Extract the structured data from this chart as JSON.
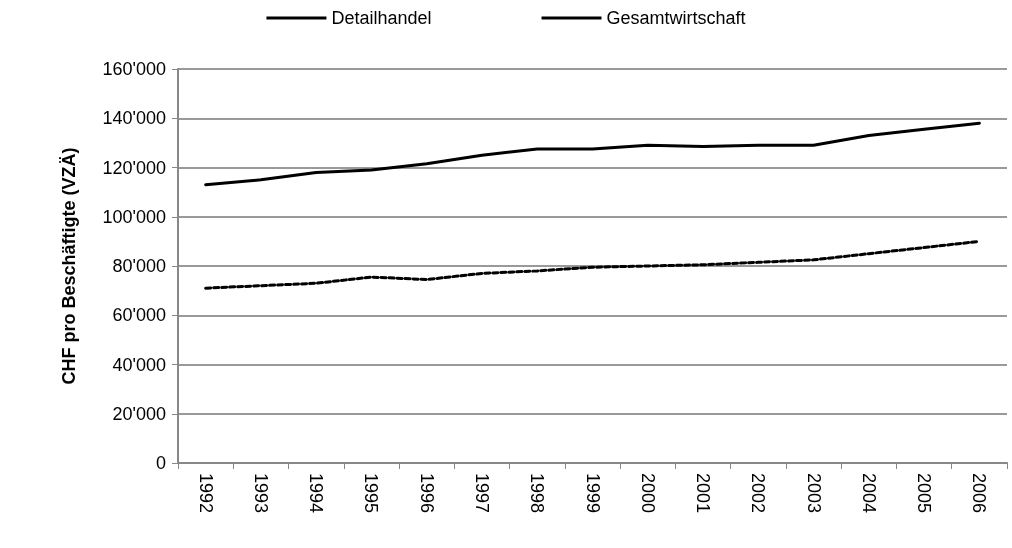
{
  "chart_data": {
    "type": "line",
    "ylabel": "CHF pro Beschäftigte (VZÄ)",
    "categories": [
      "1992",
      "1993",
      "1994",
      "1995",
      "1996",
      "1997",
      "1998",
      "1999",
      "2000",
      "2001",
      "2002",
      "2003",
      "2004",
      "2005",
      "2006"
    ],
    "series": [
      {
        "name": "Detailhandel",
        "color": "#000000",
        "line_style": "dashed",
        "values": [
          71000,
          72000,
          73000,
          75500,
          74500,
          77000,
          78000,
          79500,
          80000,
          80500,
          81500,
          82500,
          85000,
          87500,
          90000
        ]
      },
      {
        "name": "Gesamtwirtschaft",
        "color": "#000000",
        "line_style": "solid",
        "values": [
          113000,
          115000,
          118000,
          119000,
          121500,
          125000,
          127500,
          127500,
          129000,
          128500,
          129000,
          129000,
          133000,
          135500,
          138000
        ]
      }
    ],
    "ylim": [
      0,
      160000
    ],
    "yticks": [
      {
        "value": 0,
        "label": "0"
      },
      {
        "value": 20000,
        "label": "20'000"
      },
      {
        "value": 40000,
        "label": "40'000"
      },
      {
        "value": 60000,
        "label": "60'000"
      },
      {
        "value": 80000,
        "label": "80'000"
      },
      {
        "value": 100000,
        "label": "100'000"
      },
      {
        "value": 120000,
        "label": "120'000"
      },
      {
        "value": 140000,
        "label": "140'000"
      },
      {
        "value": 160000,
        "label": "160'000"
      }
    ],
    "grid": "y",
    "legend": "top",
    "marker": "none"
  }
}
